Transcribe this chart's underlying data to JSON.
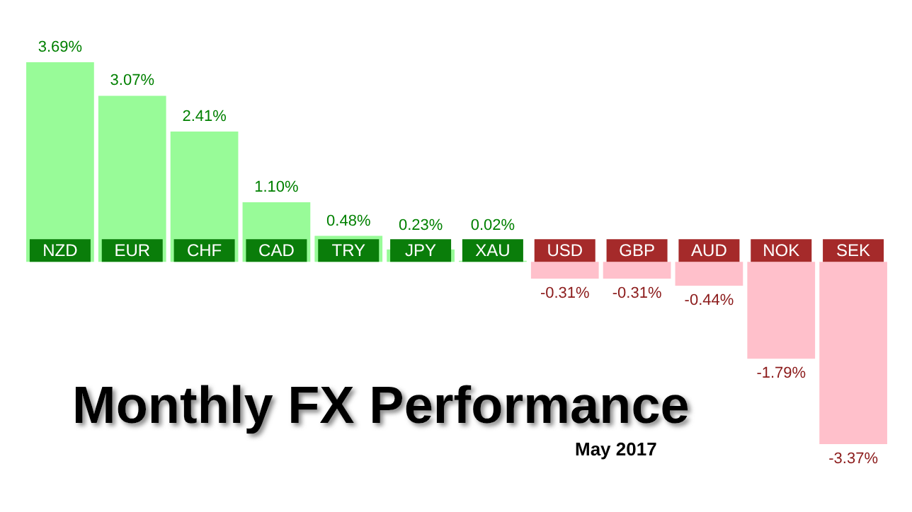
{
  "chart_data": {
    "type": "bar",
    "title": "Monthly FX Performance",
    "subtitle": "May 2017",
    "categories": [
      "NZD",
      "EUR",
      "CHF",
      "CAD",
      "TRY",
      "JPY",
      "XAU",
      "USD",
      "GBP",
      "AUD",
      "NOK",
      "SEK"
    ],
    "values": [
      3.69,
      3.07,
      2.41,
      1.1,
      0.48,
      0.23,
      0.02,
      -0.31,
      -0.31,
      -0.44,
      -1.79,
      -3.37
    ],
    "value_labels": [
      "3.69%",
      "3.07%",
      "2.41%",
      "1.10%",
      "0.48%",
      "0.23%",
      "0.02%",
      "-0.31%",
      "-0.31%",
      "-0.44%",
      "-1.79%",
      "-3.37%"
    ],
    "colors": [
      "#98fb98",
      "#98fb98",
      "#98fb98",
      "#98fb98",
      "#98fb98",
      "#98fb98",
      "#98fb98",
      "#ffc0cb",
      "#ffc0cb",
      "#ffc0cb",
      "#ffc0cb",
      "#ffc0cb"
    ],
    "grid": false
  }
}
